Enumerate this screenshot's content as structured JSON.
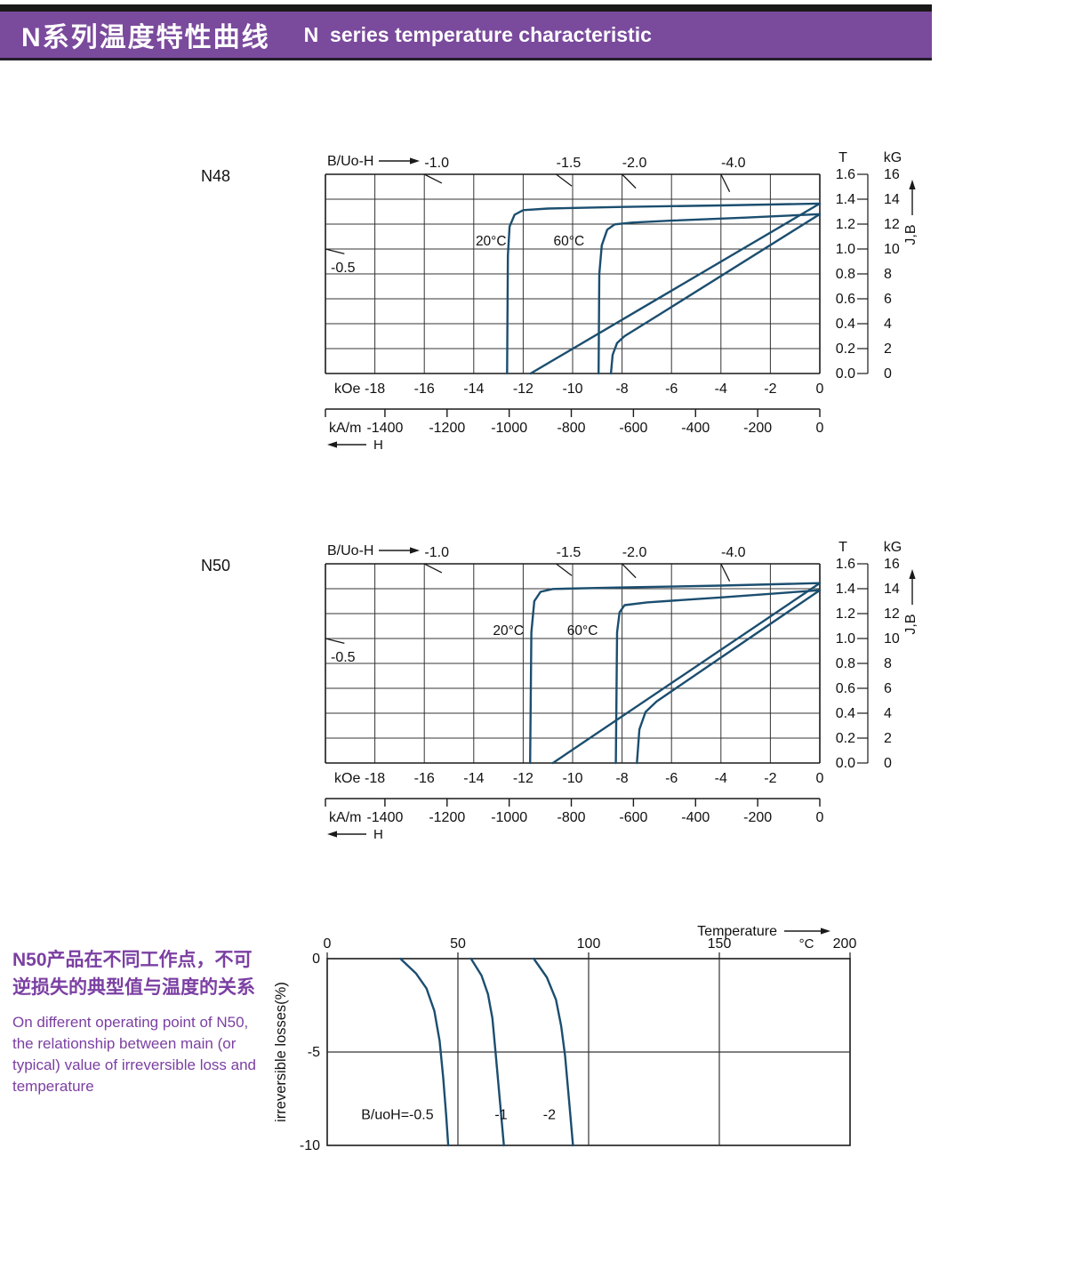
{
  "header": {
    "title_zh": "N系列温度特性曲线",
    "title_en": "N  series temperature characteristic",
    "bg": "#7a4a9c",
    "text_color": "#ffffff"
  },
  "colors": {
    "curve": "#1b4e6f",
    "grid": "#343434",
    "frame": "#1a1a1a",
    "text": "#111111",
    "note_purple": "#7b3fa2"
  },
  "note": {
    "zh_line1": "N50产品在不同工作点，不可",
    "zh_line2": "逆损失的典型值与温度的关系",
    "en_lines": [
      "On different operating point of N50,",
      "the relationship between main (or",
      "typical) value of irreversible loss and",
      "temperature"
    ]
  },
  "chart_data": [
    {
      "id": "n48-demagnetization",
      "type": "line",
      "title": "N48",
      "x_axis": {
        "unit_top": "B/Uo-H",
        "primary_unit": "kOe",
        "primary_ticks": [
          -18,
          -16,
          -14,
          -12,
          -10,
          -8,
          -6,
          -4,
          -2,
          0
        ],
        "secondary_unit": "kA/m",
        "secondary_ticks": [
          -1400,
          -1200,
          -1000,
          -800,
          -600,
          -400,
          -200,
          0
        ],
        "xlim_kOe": [
          -20,
          0
        ],
        "arrow_label": "H"
      },
      "y_axis": {
        "unit_left": "T",
        "unit_right": "kG",
        "t_ticks": [
          "1.6",
          "1.4",
          "1.2",
          "1.0",
          "0.8",
          "0.6",
          "0.4",
          "0.2",
          "0.0"
        ],
        "kg_ticks": [
          16,
          14,
          12,
          10,
          8,
          6,
          4,
          2,
          0
        ],
        "ylim_kG": [
          0,
          16
        ],
        "label": "J,B"
      },
      "load_lines": [
        {
          "label": "-0.5",
          "ratio": 0.5
        },
        {
          "label": "-1.0",
          "ratio": 1.0
        },
        {
          "label": "-1.5",
          "ratio": 1.5
        },
        {
          "label": "-2.0",
          "ratio": 2.0
        },
        {
          "label": "-4.0",
          "ratio": 4.0
        }
      ],
      "series": [
        {
          "name": "J 20°C",
          "points": [
            [
              0,
              13.65
            ],
            [
              -4,
              13.5
            ],
            [
              -8,
              13.38
            ],
            [
              -11,
              13.25
            ],
            [
              -12,
              13.12
            ],
            [
              -12.35,
              12.75
            ],
            [
              -12.55,
              11.8
            ],
            [
              -12.62,
              9.5
            ],
            [
              -12.65,
              0
            ]
          ]
        },
        {
          "name": "B 20°C",
          "points": [
            [
              0,
              13.65
            ],
            [
              -11.7,
              0
            ]
          ]
        },
        {
          "name": "J 60°C",
          "points": [
            [
              0,
              12.8
            ],
            [
              -3,
              12.52
            ],
            [
              -6,
              12.28
            ],
            [
              -7.6,
              12.12
            ],
            [
              -8.3,
              11.98
            ],
            [
              -8.6,
              11.55
            ],
            [
              -8.82,
              10.3
            ],
            [
              -8.92,
              8
            ],
            [
              -8.95,
              0
            ]
          ]
        },
        {
          "name": "B 60°C",
          "points": [
            [
              0,
              12.8
            ],
            [
              -6.5,
              4.72
            ],
            [
              -7.9,
              3.0
            ],
            [
              -8.2,
              2.45
            ],
            [
              -8.38,
              1.5
            ],
            [
              -8.45,
              0
            ]
          ]
        }
      ],
      "annotations": [
        {
          "text": "20°C",
          "h": -13.3,
          "b": 10.3
        },
        {
          "text": "60°C",
          "h": -10.15,
          "b": 10.3
        }
      ]
    },
    {
      "id": "n50-demagnetization",
      "type": "line",
      "title": "N50",
      "x_axis": {
        "unit_top": "B/Uo-H",
        "primary_unit": "kOe",
        "primary_ticks": [
          -18,
          -16,
          -14,
          -12,
          -10,
          -8,
          -6,
          -4,
          -2,
          0
        ],
        "secondary_unit": "kA/m",
        "secondary_ticks": [
          -1400,
          -1200,
          -1000,
          -800,
          -600,
          -400,
          -200,
          0
        ],
        "xlim_kOe": [
          -20,
          0
        ],
        "arrow_label": "H"
      },
      "y_axis": {
        "unit_left": "T",
        "unit_right": "kG",
        "t_ticks": [
          "1.6",
          "1.4",
          "1.2",
          "1.0",
          "0.8",
          "0.6",
          "0.4",
          "0.2",
          "0.0"
        ],
        "kg_ticks": [
          16,
          14,
          12,
          10,
          8,
          6,
          4,
          2,
          0
        ],
        "ylim_kG": [
          0,
          16
        ],
        "label": "J,B"
      },
      "load_lines": [
        {
          "label": "-0.5",
          "ratio": 0.5
        },
        {
          "label": "-1.0",
          "ratio": 1.0
        },
        {
          "label": "-1.5",
          "ratio": 1.5
        },
        {
          "label": "-2.0",
          "ratio": 2.0
        },
        {
          "label": "-4.0",
          "ratio": 4.0
        }
      ],
      "series": [
        {
          "name": "J 20°C",
          "points": [
            [
              0,
              14.45
            ],
            [
              -4,
              14.25
            ],
            [
              -8,
              14.1
            ],
            [
              -10.8,
              13.98
            ],
            [
              -11.3,
              13.75
            ],
            [
              -11.55,
              13.0
            ],
            [
              -11.67,
              10.5
            ],
            [
              -11.72,
              0
            ]
          ]
        },
        {
          "name": "B 20°C",
          "points": [
            [
              0,
              14.45
            ],
            [
              -10.8,
              0
            ]
          ]
        },
        {
          "name": "J 60°C",
          "points": [
            [
              0,
              13.88
            ],
            [
              -4,
              13.3
            ],
            [
              -7,
              12.9
            ],
            [
              -7.9,
              12.68
            ],
            [
              -8.1,
              12.1
            ],
            [
              -8.2,
              10.5
            ],
            [
              -8.25,
              0
            ]
          ]
        },
        {
          "name": "B 60°C",
          "points": [
            [
              0,
              13.88
            ],
            [
              -6.6,
              4.95
            ],
            [
              -7.05,
              4.1
            ],
            [
              -7.3,
              2.7
            ],
            [
              -7.4,
              0
            ]
          ]
        }
      ],
      "annotations": [
        {
          "text": "20°C",
          "h": -12.6,
          "b": 10.3
        },
        {
          "text": "60°C",
          "h": -9.6,
          "b": 10.3
        }
      ]
    },
    {
      "id": "n50-irreversible-loss",
      "type": "line",
      "x_axis": {
        "label": "Temperature",
        "unit": "°C",
        "ticks": [
          0,
          50,
          100,
          150,
          200
        ],
        "xlim": [
          0,
          200
        ]
      },
      "y_axis": {
        "label": "irreversible  losses(%)",
        "ticks": [
          "0",
          "-5",
          "-10"
        ],
        "tick_values": [
          0,
          -5,
          -10
        ],
        "ylim": [
          0,
          -10
        ]
      },
      "series": [
        {
          "name": "B/uoH=-0.5",
          "points": [
            [
              28,
              0
            ],
            [
              34,
              -0.8
            ],
            [
              38,
              -1.6
            ],
            [
              41,
              -2.8
            ],
            [
              43,
              -4.4
            ],
            [
              44.4,
              -6.4
            ],
            [
              45.5,
              -8.4
            ],
            [
              46.3,
              -10
            ]
          ]
        },
        {
          "name": "-1",
          "points": [
            [
              55,
              0
            ],
            [
              59,
              -0.9
            ],
            [
              61.5,
              -1.9
            ],
            [
              63.2,
              -3.2
            ],
            [
              64.4,
              -5
            ],
            [
              66,
              -7.5
            ],
            [
              67.6,
              -10
            ]
          ]
        },
        {
          "name": "-2",
          "points": [
            [
              79,
              0
            ],
            [
              84,
              -1
            ],
            [
              87.5,
              -2.2
            ],
            [
              89.5,
              -3.6
            ],
            [
              91,
              -5.2
            ],
            [
              92.5,
              -7.6
            ],
            [
              94,
              -10
            ]
          ]
        }
      ],
      "series_labels": [
        {
          "text": "B/uoH=-0.5",
          "t": 13,
          "v": -8.6,
          "anchor": "start"
        },
        {
          "text": "-1",
          "t": 66.5,
          "v": -8.6,
          "anchor": "middle"
        },
        {
          "text": "-2",
          "t": 85,
          "v": -8.6,
          "anchor": "middle"
        }
      ]
    }
  ]
}
